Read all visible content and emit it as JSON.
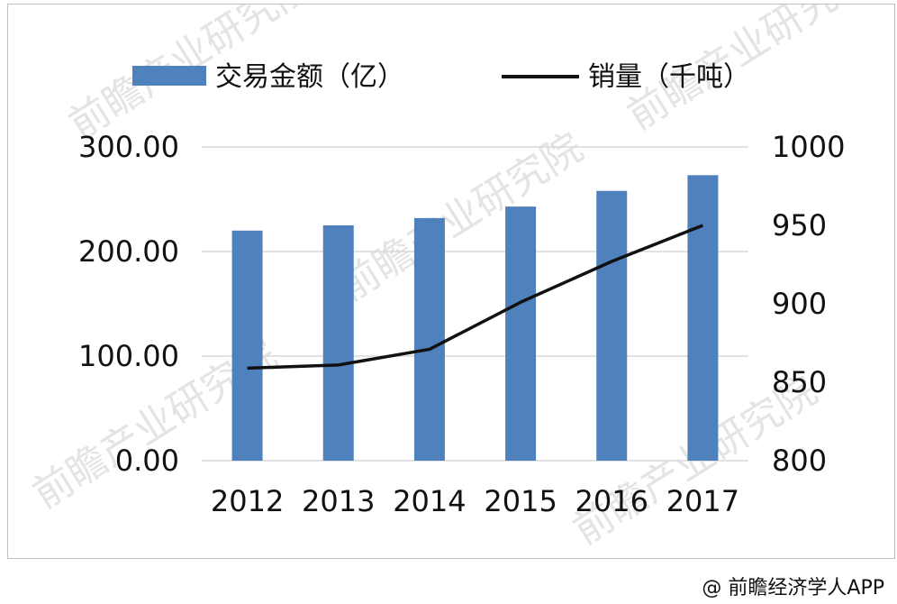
{
  "chart_data": {
    "type": "bar",
    "categories": [
      "2012",
      "2013",
      "2014",
      "2015",
      "2016",
      "2017"
    ],
    "series": [
      {
        "name": "交易金额（亿）",
        "type": "bar",
        "axis": "left",
        "color": "#4f81bd",
        "values": [
          220,
          225,
          232,
          243,
          258,
          273
        ]
      },
      {
        "name": "销量（千吨）",
        "type": "line",
        "axis": "right",
        "color": "#111111",
        "values": [
          859,
          861,
          871,
          901,
          927,
          950
        ]
      }
    ],
    "left_axis": {
      "ylim": [
        0,
        300
      ],
      "ticks": [
        "300.00",
        "200.00",
        "100.00",
        "0.00"
      ]
    },
    "right_axis": {
      "ylim": [
        800,
        1000
      ],
      "ticks": [
        "1000",
        "950",
        "900",
        "850",
        "800"
      ]
    },
    "grid": true,
    "legend_position": "top",
    "watermark": "前瞻产业研究院"
  },
  "credit": "@ 前瞻经济学人APP"
}
